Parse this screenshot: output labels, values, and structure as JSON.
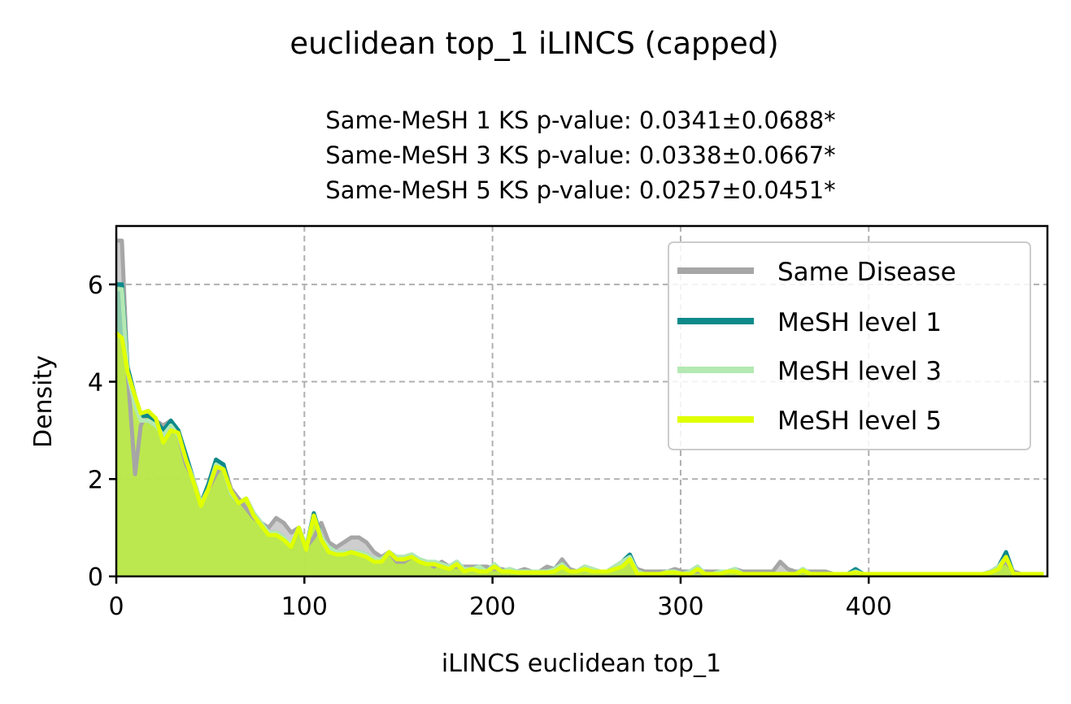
{
  "chart_data": {
    "type": "area",
    "title": "euclidean top_1 iLINCS (capped)",
    "subtitle_lines": [
      "Same-MeSH 1 KS p-value: 0.0341±0.0688*",
      "Same-MeSH 3 KS p-value: 0.0338±0.0667*",
      "Same-MeSH 5 KS p-value: 0.0257±0.0451*"
    ],
    "xlabel": "iLINCS euclidean top_1",
    "ylabel": "Density",
    "xlim": [
      0,
      495
    ],
    "ylim": [
      0,
      7.2
    ],
    "xticks": [
      0,
      100,
      200,
      300,
      400
    ],
    "yticks": [
      0,
      2,
      4,
      6
    ],
    "grid": true,
    "legend_position": "top-right",
    "series": [
      {
        "name": "Same Disease",
        "color": "#a6a6a6",
        "x": [
          0,
          3,
          6,
          10,
          13,
          17,
          21,
          25,
          29,
          33,
          37,
          41,
          45,
          49,
          53,
          57,
          61,
          65,
          69,
          73,
          77,
          81,
          85,
          89,
          93,
          97,
          101,
          105,
          109,
          113,
          117,
          121,
          125,
          129,
          133,
          137,
          141,
          145,
          149,
          153,
          157,
          161,
          165,
          169,
          173,
          177,
          181,
          185,
          189,
          193,
          197,
          201,
          205,
          209,
          213,
          217,
          221,
          225,
          229,
          233,
          237,
          241,
          245,
          249,
          253,
          257,
          261,
          265,
          269,
          273,
          277,
          281,
          285,
          289,
          293,
          297,
          301,
          305,
          309,
          313,
          317,
          321,
          325,
          329,
          333,
          337,
          341,
          345,
          349,
          353,
          357,
          361,
          365,
          369,
          373,
          377,
          381,
          385,
          389,
          393,
          397,
          401,
          405,
          409,
          413,
          417,
          421,
          425,
          429,
          433,
          437,
          441,
          445,
          449,
          453,
          457,
          461,
          465,
          469,
          473,
          477,
          481,
          485,
          489,
          493
        ],
        "values": [
          6.9,
          6.9,
          4.2,
          2.1,
          3.1,
          3.4,
          3.2,
          3.1,
          3.2,
          2.9,
          2.3,
          2.0,
          1.5,
          1.8,
          2.1,
          2.3,
          1.8,
          1.6,
          1.4,
          1.2,
          1.1,
          1.0,
          1.2,
          1.1,
          0.9,
          1.0,
          0.6,
          0.8,
          1.1,
          0.7,
          0.6,
          0.7,
          0.8,
          0.8,
          0.7,
          0.5,
          0.4,
          0.5,
          0.3,
          0.3,
          0.4,
          0.3,
          0.3,
          0.2,
          0.3,
          0.2,
          0.2,
          0.2,
          0.2,
          0.2,
          0.2,
          0.15,
          0.15,
          0.1,
          0.1,
          0.15,
          0.1,
          0.1,
          0.2,
          0.15,
          0.35,
          0.15,
          0.1,
          0.2,
          0.15,
          0.1,
          0.1,
          0.2,
          0.3,
          0.35,
          0.15,
          0.1,
          0.1,
          0.1,
          0.1,
          0.15,
          0.1,
          0.1,
          0.1,
          0.1,
          0.1,
          0.1,
          0.1,
          0.15,
          0.1,
          0.1,
          0.1,
          0.1,
          0.1,
          0.3,
          0.15,
          0.1,
          0.1,
          0.1,
          0.1,
          0.1,
          0.05,
          0.05,
          0.05,
          0.1,
          0.05,
          0.05,
          0.05,
          0.05,
          0.05,
          0.05,
          0.05,
          0.05,
          0.05,
          0.05,
          0.05,
          0.05,
          0.05,
          0.05,
          0.05,
          0.05,
          0.05,
          0.1,
          0.2,
          0.3,
          0.1,
          0.05,
          0.05,
          0.05,
          0.05
        ]
      },
      {
        "name": "MeSH level 1",
        "color": "#0e8a8a",
        "x": [
          0,
          3,
          6,
          10,
          13,
          17,
          21,
          25,
          29,
          33,
          37,
          41,
          45,
          49,
          53,
          57,
          61,
          65,
          69,
          73,
          77,
          81,
          85,
          89,
          93,
          97,
          101,
          105,
          109,
          113,
          117,
          121,
          125,
          129,
          133,
          137,
          141,
          145,
          149,
          153,
          157,
          161,
          165,
          169,
          173,
          177,
          181,
          185,
          189,
          193,
          197,
          201,
          205,
          209,
          213,
          217,
          221,
          225,
          229,
          233,
          237,
          241,
          245,
          249,
          253,
          257,
          261,
          265,
          269,
          273,
          277,
          281,
          285,
          289,
          293,
          297,
          301,
          305,
          309,
          313,
          317,
          321,
          325,
          329,
          333,
          337,
          341,
          345,
          349,
          353,
          357,
          361,
          365,
          369,
          373,
          377,
          381,
          385,
          389,
          393,
          397,
          401,
          405,
          409,
          413,
          417,
          421,
          425,
          429,
          433,
          437,
          441,
          445,
          449,
          453,
          457,
          461,
          465,
          469,
          473,
          477,
          481,
          485,
          489,
          493
        ],
        "values": [
          6.0,
          6.0,
          4.3,
          3.7,
          3.3,
          3.3,
          3.2,
          3.0,
          3.2,
          3.0,
          2.5,
          2.0,
          1.5,
          1.9,
          2.4,
          2.3,
          1.7,
          1.5,
          1.6,
          1.3,
          1.1,
          0.9,
          0.9,
          0.8,
          0.6,
          1.0,
          0.6,
          1.3,
          0.8,
          0.6,
          0.5,
          0.5,
          0.5,
          0.5,
          0.45,
          0.35,
          0.35,
          0.5,
          0.4,
          0.4,
          0.45,
          0.35,
          0.3,
          0.3,
          0.25,
          0.2,
          0.3,
          0.15,
          0.15,
          0.2,
          0.1,
          0.25,
          0.1,
          0.15,
          0.1,
          0.1,
          0.1,
          0.1,
          0.1,
          0.15,
          0.25,
          0.1,
          0.1,
          0.2,
          0.15,
          0.1,
          0.1,
          0.2,
          0.3,
          0.45,
          0.1,
          0.05,
          0.05,
          0.05,
          0.1,
          0.1,
          0.05,
          0.1,
          0.2,
          0.05,
          0.05,
          0.1,
          0.1,
          0.15,
          0.05,
          0.05,
          0.05,
          0.05,
          0.05,
          0.05,
          0.05,
          0.05,
          0.15,
          0.05,
          0.05,
          0.05,
          0.05,
          0.05,
          0.05,
          0.15,
          0.05,
          0.05,
          0.05,
          0.05,
          0.05,
          0.05,
          0.05,
          0.05,
          0.05,
          0.05,
          0.05,
          0.05,
          0.05,
          0.05,
          0.05,
          0.05,
          0.05,
          0.1,
          0.2,
          0.5,
          0.05,
          0.05,
          0.05,
          0.05,
          0.05
        ]
      },
      {
        "name": "MeSH level 3",
        "color": "#b3e9b3",
        "x": [
          0,
          3,
          6,
          10,
          13,
          17,
          21,
          25,
          29,
          33,
          37,
          41,
          45,
          49,
          53,
          57,
          61,
          65,
          69,
          73,
          77,
          81,
          85,
          89,
          93,
          97,
          101,
          105,
          109,
          113,
          117,
          121,
          125,
          129,
          133,
          137,
          141,
          145,
          149,
          153,
          157,
          161,
          165,
          169,
          173,
          177,
          181,
          185,
          189,
          193,
          197,
          201,
          205,
          209,
          213,
          217,
          221,
          225,
          229,
          233,
          237,
          241,
          245,
          249,
          253,
          257,
          261,
          265,
          269,
          273,
          277,
          281,
          285,
          289,
          293,
          297,
          301,
          305,
          309,
          313,
          317,
          321,
          325,
          329,
          333,
          337,
          341,
          345,
          349,
          353,
          357,
          361,
          365,
          369,
          373,
          377,
          381,
          385,
          389,
          393,
          397,
          401,
          405,
          409,
          413,
          417,
          421,
          425,
          429,
          433,
          437,
          441,
          445,
          449,
          453,
          457,
          461,
          465,
          469,
          473,
          477,
          481,
          485,
          489,
          493
        ],
        "values": [
          5.9,
          5.9,
          4.2,
          3.5,
          3.2,
          3.2,
          3.1,
          2.9,
          3.1,
          2.9,
          2.4,
          2.0,
          1.5,
          1.8,
          2.3,
          2.2,
          1.7,
          1.5,
          1.6,
          1.3,
          1.1,
          0.9,
          0.9,
          0.8,
          0.65,
          1.0,
          0.6,
          1.25,
          0.8,
          0.6,
          0.5,
          0.5,
          0.5,
          0.5,
          0.45,
          0.35,
          0.35,
          0.5,
          0.4,
          0.4,
          0.45,
          0.35,
          0.3,
          0.3,
          0.25,
          0.2,
          0.3,
          0.15,
          0.15,
          0.2,
          0.1,
          0.25,
          0.1,
          0.15,
          0.1,
          0.1,
          0.1,
          0.1,
          0.1,
          0.15,
          0.25,
          0.1,
          0.1,
          0.2,
          0.15,
          0.1,
          0.1,
          0.2,
          0.3,
          0.4,
          0.1,
          0.05,
          0.05,
          0.05,
          0.1,
          0.1,
          0.05,
          0.1,
          0.2,
          0.05,
          0.05,
          0.1,
          0.1,
          0.15,
          0.05,
          0.05,
          0.05,
          0.05,
          0.05,
          0.05,
          0.05,
          0.05,
          0.15,
          0.05,
          0.05,
          0.05,
          0.05,
          0.05,
          0.05,
          0.1,
          0.05,
          0.05,
          0.05,
          0.05,
          0.05,
          0.05,
          0.05,
          0.05,
          0.05,
          0.05,
          0.05,
          0.05,
          0.05,
          0.05,
          0.05,
          0.05,
          0.05,
          0.1,
          0.2,
          0.4,
          0.05,
          0.05,
          0.05,
          0.05,
          0.05
        ]
      },
      {
        "name": "MeSH level 5",
        "color": "#e0ff00",
        "x": [
          0,
          3,
          6,
          10,
          13,
          17,
          21,
          25,
          29,
          33,
          37,
          41,
          45,
          49,
          53,
          57,
          61,
          65,
          69,
          73,
          77,
          81,
          85,
          89,
          93,
          97,
          101,
          105,
          109,
          113,
          117,
          121,
          125,
          129,
          133,
          137,
          141,
          145,
          149,
          153,
          157,
          161,
          165,
          169,
          173,
          177,
          181,
          185,
          189,
          193,
          197,
          201,
          205,
          209,
          213,
          217,
          221,
          225,
          229,
          233,
          237,
          241,
          245,
          249,
          253,
          257,
          261,
          265,
          269,
          273,
          277,
          281,
          285,
          289,
          293,
          297,
          301,
          305,
          309,
          313,
          317,
          321,
          325,
          329,
          333,
          337,
          341,
          345,
          349,
          353,
          357,
          361,
          365,
          369,
          373,
          377,
          381,
          385,
          389,
          393,
          397,
          401,
          405,
          409,
          413,
          417,
          421,
          425,
          429,
          433,
          437,
          441,
          445,
          449,
          453,
          457,
          461,
          465,
          469,
          473,
          477,
          481,
          485,
          489,
          493
        ],
        "values": [
          5.0,
          4.9,
          4.2,
          3.7,
          3.35,
          3.4,
          3.25,
          2.75,
          3.0,
          2.95,
          2.4,
          1.95,
          1.45,
          1.8,
          2.25,
          2.2,
          1.75,
          1.5,
          1.6,
          1.25,
          1.05,
          0.85,
          0.85,
          0.75,
          0.6,
          1.0,
          0.55,
          1.25,
          0.75,
          0.5,
          0.45,
          0.45,
          0.5,
          0.45,
          0.4,
          0.3,
          0.3,
          0.5,
          0.35,
          0.35,
          0.4,
          0.3,
          0.25,
          0.25,
          0.2,
          0.15,
          0.25,
          0.1,
          0.15,
          0.1,
          0.1,
          0.2,
          0.1,
          0.1,
          0.08,
          0.08,
          0.08,
          0.08,
          0.08,
          0.1,
          0.2,
          0.1,
          0.1,
          0.15,
          0.1,
          0.1,
          0.1,
          0.15,
          0.2,
          0.35,
          0.05,
          0.05,
          0.05,
          0.05,
          0.08,
          0.08,
          0.05,
          0.05,
          0.15,
          0.05,
          0.05,
          0.05,
          0.1,
          0.1,
          0.05,
          0.05,
          0.05,
          0.05,
          0.05,
          0.05,
          0.05,
          0.05,
          0.12,
          0.05,
          0.05,
          0.05,
          0.05,
          0.05,
          0.05,
          0.08,
          0.05,
          0.05,
          0.05,
          0.05,
          0.05,
          0.05,
          0.05,
          0.05,
          0.05,
          0.05,
          0.05,
          0.05,
          0.05,
          0.05,
          0.05,
          0.05,
          0.05,
          0.08,
          0.15,
          0.4,
          0.05,
          0.05,
          0.05,
          0.05,
          0.05
        ]
      }
    ]
  }
}
